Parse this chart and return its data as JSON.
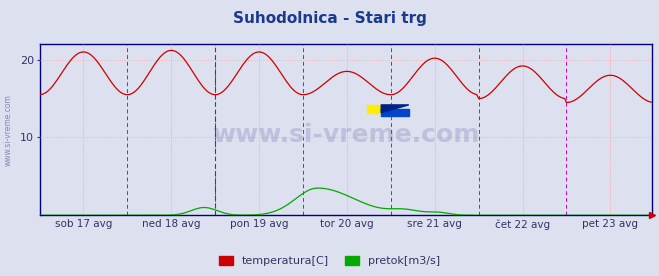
{
  "title": "Suhodolnica - Stari trg",
  "title_color": "#1a3a8c",
  "title_fontsize": 11,
  "bg_color": "#dde0ee",
  "plot_bg_color": "#dde0ee",
  "x_labels": [
    "sob 17 avg",
    "ned 18 avg",
    "pon 19 avg",
    "tor 20 avg",
    "sre 21 avg",
    "čet 22 avg",
    "pet 23 avg"
  ],
  "n_days": 7,
  "pts_per_day": 48,
  "ylim": [
    0,
    22
  ],
  "yticks": [
    10,
    20
  ],
  "grid_color": "#ffaaaa",
  "grid_linestyle": ":",
  "vline_magenta": "#cc00cc",
  "vline_black": "#444444",
  "axis_color": "#000080",
  "temp_color": "#cc0000",
  "flow_color": "#00aa00",
  "sidebar_text": "www.si-vreme.com",
  "sidebar_color": "#7777aa",
  "legend_labels": [
    "temperatura[C]",
    "pretok[m3/s]"
  ],
  "legend_colors": [
    "#cc0000",
    "#00aa00"
  ],
  "watermark_color": "#333399",
  "watermark_alpha": 0.18
}
